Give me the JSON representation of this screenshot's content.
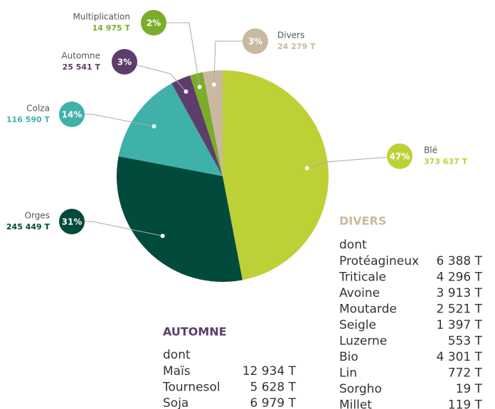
{
  "chart_data": {
    "type": "pie",
    "categories": [
      "Blé",
      "Orges",
      "Colza",
      "Automne",
      "Multiplication",
      "Divers"
    ],
    "values": [
      47,
      31,
      14,
      3,
      2,
      3
    ],
    "value_labels": [
      "47%",
      "31%",
      "14%",
      "3%",
      "2%",
      "3%"
    ],
    "tonnages": [
      "373 637 T",
      "245 449 T",
      "116 590 T",
      "25 541 T",
      "14 975 T",
      "24 279 T"
    ],
    "colors": [
      "#bdd137",
      "#024a3c",
      "#3eb1a9",
      "#5e3c6b",
      "#7aad2a",
      "#c9b9a0"
    ]
  },
  "divers_table": {
    "title": "DIVERS",
    "subtitle": "dont",
    "rows": [
      [
        "Protéagineux",
        "6 388 T"
      ],
      [
        "Triticale",
        "4 296 T"
      ],
      [
        "Avoine",
        "3 913 T"
      ],
      [
        "Moutarde",
        "2 521 T"
      ],
      [
        "Seigle",
        "1 397 T"
      ],
      [
        "Luzerne",
        "553 T"
      ],
      [
        "Bio",
        "4 301 T"
      ],
      [
        "Lin",
        "772 T"
      ],
      [
        "Sorgho",
        "19 T"
      ],
      [
        "Millet",
        "119 T"
      ]
    ]
  },
  "automne_table": {
    "title": "AUTOMNE",
    "subtitle": "dont",
    "rows": [
      [
        "Maïs",
        "12 934 T"
      ],
      [
        "Tournesol",
        "5 628 T"
      ],
      [
        "Soja",
        "6 979 T"
      ]
    ]
  }
}
